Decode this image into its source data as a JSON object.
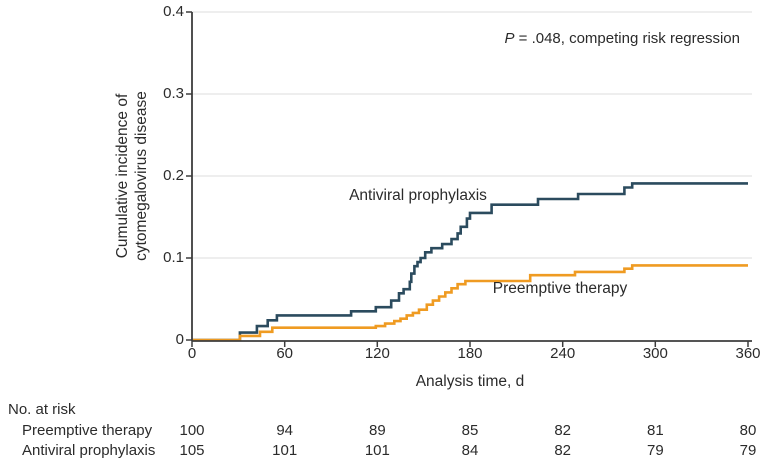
{
  "chart_data": {
    "type": "line",
    "subtype": "step-cumulative-incidence",
    "title": "",
    "xlabel": "Analysis time, d",
    "ylabel": "Cumulative incidence of cytomegalovirus disease",
    "ylabel_lines": [
      "Cumulative incidence of",
      "cytomegalovirus disease"
    ],
    "xlim": [
      0,
      360
    ],
    "ylim": [
      0,
      0.4
    ],
    "xticks": [
      0,
      60,
      120,
      180,
      240,
      300,
      360
    ],
    "yticks": [
      "0",
      "0.1",
      "0.2",
      "0.3",
      "0.4"
    ],
    "grid": "horizontal",
    "legend_position": "inline-labels",
    "annotation": "P = .048, competing risk regression",
    "annotation_p": "P",
    "annotation_rest": " = .048, competing risk regression",
    "series": [
      {
        "name": "Antiviral prophylaxis",
        "color": "#2B4B5E",
        "points": [
          [
            0,
            0
          ],
          [
            31,
            0.009
          ],
          [
            42,
            0.017
          ],
          [
            49,
            0.024
          ],
          [
            55,
            0.03
          ],
          [
            103,
            0.035
          ],
          [
            119,
            0.04
          ],
          [
            129,
            0.048
          ],
          [
            134,
            0.057
          ],
          [
            137,
            0.062
          ],
          [
            141,
            0.071
          ],
          [
            142,
            0.081
          ],
          [
            144,
            0.09
          ],
          [
            146,
            0.095
          ],
          [
            148,
            0.1
          ],
          [
            151,
            0.107
          ],
          [
            155,
            0.112
          ],
          [
            162,
            0.117
          ],
          [
            168,
            0.123
          ],
          [
            172,
            0.13
          ],
          [
            174,
            0.138
          ],
          [
            178,
            0.148
          ],
          [
            180,
            0.155
          ],
          [
            194,
            0.165
          ],
          [
            224,
            0.172
          ],
          [
            250,
            0.178
          ],
          [
            280,
            0.186
          ],
          [
            285,
            0.191
          ],
          [
            360,
            0.191
          ]
        ]
      },
      {
        "name": "Preemptive therapy",
        "color": "#EF9B22",
        "points": [
          [
            0,
            0
          ],
          [
            31,
            0.005
          ],
          [
            44,
            0.01
          ],
          [
            52,
            0.015
          ],
          [
            119,
            0.017
          ],
          [
            125,
            0.02
          ],
          [
            131,
            0.023
          ],
          [
            135,
            0.026
          ],
          [
            139,
            0.03
          ],
          [
            143,
            0.033
          ],
          [
            147,
            0.037
          ],
          [
            152,
            0.043
          ],
          [
            156,
            0.048
          ],
          [
            160,
            0.053
          ],
          [
            164,
            0.058
          ],
          [
            168,
            0.063
          ],
          [
            172,
            0.068
          ],
          [
            177,
            0.072
          ],
          [
            219,
            0.079
          ],
          [
            248,
            0.083
          ],
          [
            280,
            0.087
          ],
          [
            285,
            0.091
          ],
          [
            360,
            0.091
          ]
        ]
      }
    ],
    "colors": {
      "grid": "#E4E4E4",
      "axis": "#3D3D3D",
      "text": "#2B2B2B"
    }
  },
  "risk_table": {
    "header": "No. at risk",
    "times": [
      0,
      60,
      120,
      180,
      240,
      300,
      360
    ],
    "rows": [
      {
        "label": "Preemptive therapy",
        "values": [
          100,
          94,
          89,
          85,
          82,
          81,
          80
        ]
      },
      {
        "label": "Antiviral prophylaxis",
        "values": [
          105,
          101,
          101,
          84,
          82,
          79,
          79
        ]
      }
    ]
  }
}
